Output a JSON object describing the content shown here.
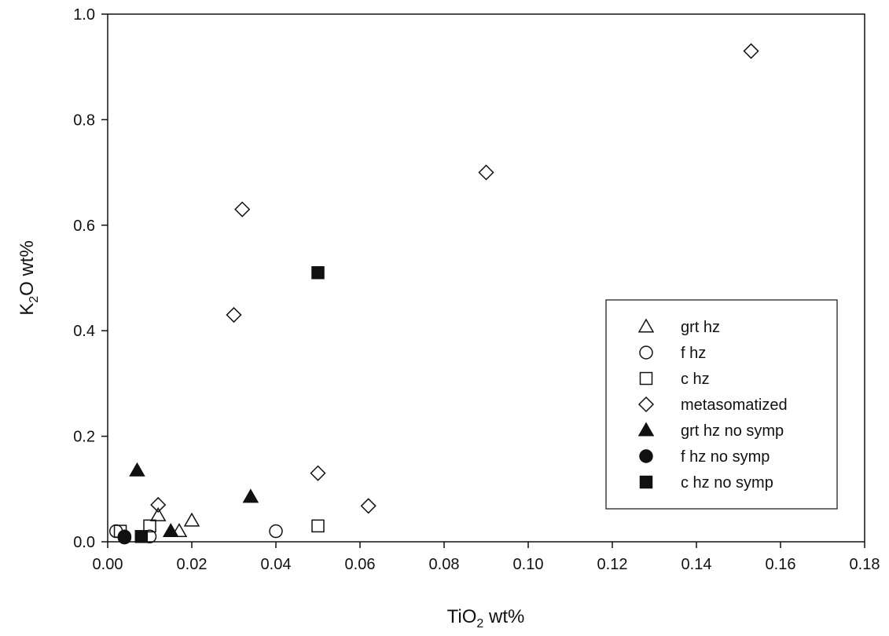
{
  "chart_data": {
    "type": "scatter",
    "xlabel": {
      "base": "TiO",
      "sub": "2",
      "rest": " wt%"
    },
    "ylabel": {
      "base": "K",
      "sub": "2",
      "rest": "O wt%"
    },
    "xlim": [
      0,
      0.18
    ],
    "ylim": [
      0,
      1.0
    ],
    "xticks": [
      0.0,
      0.02,
      0.04,
      0.06,
      0.08,
      0.1,
      0.12,
      0.14,
      0.16,
      0.18
    ],
    "xtick_labels": [
      "0.00",
      "0.02",
      "0.04",
      "0.06",
      "0.08",
      "0.10",
      "0.12",
      "0.14",
      "0.16",
      "0.18"
    ],
    "yticks": [
      0.0,
      0.2,
      0.4,
      0.6,
      0.8,
      1.0
    ],
    "ytick_labels": [
      "0.0",
      "0.2",
      "0.4",
      "0.6",
      "0.8",
      "1.0"
    ],
    "grid": false,
    "legend_position": "right",
    "series": [
      {
        "name": "grt hz",
        "marker": "triangle",
        "filled": false,
        "x": [
          0.012,
          0.017,
          0.02
        ],
        "y": [
          0.05,
          0.02,
          0.04
        ]
      },
      {
        "name": "f hz",
        "marker": "circle",
        "filled": false,
        "x": [
          0.002,
          0.004,
          0.01,
          0.04
        ],
        "y": [
          0.02,
          0.01,
          0.01,
          0.02
        ]
      },
      {
        "name": "c hz",
        "marker": "square",
        "filled": false,
        "x": [
          0.003,
          0.01,
          0.05
        ],
        "y": [
          0.02,
          0.03,
          0.03
        ]
      },
      {
        "name": "metasomatized",
        "marker": "diamond",
        "filled": false,
        "x": [
          0.012,
          0.03,
          0.032,
          0.05,
          0.062,
          0.09,
          0.153
        ],
        "y": [
          0.07,
          0.43,
          0.63,
          0.13,
          0.068,
          0.7,
          0.93
        ]
      },
      {
        "name": "grt hz no symp",
        "marker": "triangle",
        "filled": true,
        "x": [
          0.007,
          0.015,
          0.034
        ],
        "y": [
          0.135,
          0.02,
          0.085
        ]
      },
      {
        "name": "f hz no symp",
        "marker": "circle",
        "filled": true,
        "x": [
          0.004
        ],
        "y": [
          0.008
        ]
      },
      {
        "name": "c hz no symp",
        "marker": "square",
        "filled": true,
        "x": [
          0.008,
          0.05
        ],
        "y": [
          0.01,
          0.51
        ]
      }
    ]
  }
}
